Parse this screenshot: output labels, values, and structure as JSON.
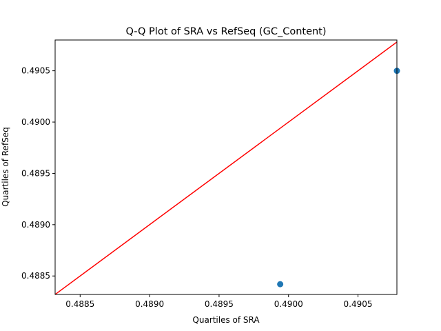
{
  "chart_data": {
    "type": "scatter",
    "title": "Q-Q Plot of SRA vs RefSeq (GC_Content)",
    "xlabel": "Quartiles of SRA",
    "ylabel": "Quartiles of RefSeq",
    "xlim": [
      0.48832,
      0.49078
    ],
    "ylim": [
      0.48832,
      0.4908
    ],
    "xticks": [
      0.4885,
      0.489,
      0.4895,
      0.49,
      0.4905
    ],
    "xtick_labels": [
      "0.4885",
      "0.4890",
      "0.4895",
      "0.4900",
      "0.4905"
    ],
    "yticks": [
      0.4885,
      0.489,
      0.4895,
      0.49,
      0.4905
    ],
    "ytick_labels": [
      "0.4885",
      "0.4890",
      "0.4895",
      "0.4900",
      "0.4905"
    ],
    "grid": false,
    "series": [
      {
        "points": [
          {
            "x": 0.48994,
            "y": 0.48842
          },
          {
            "x": 0.49078,
            "y": 0.4905
          }
        ]
      }
    ],
    "reference_line": {
      "from": [
        0.48832,
        0.48832
      ],
      "to": [
        0.4908,
        0.4908
      ]
    },
    "colors": {
      "points": "#1f77b4",
      "reference_line": "#ff0000"
    }
  }
}
